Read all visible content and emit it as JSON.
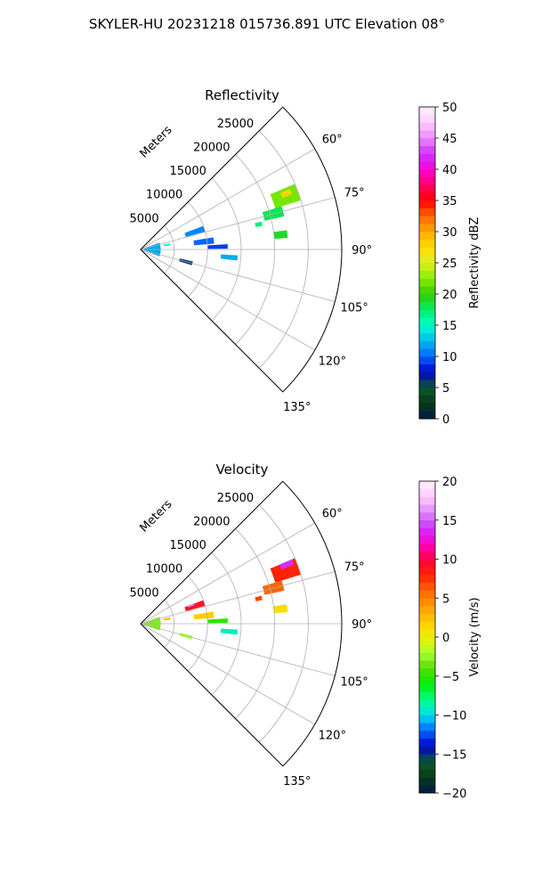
{
  "figure": {
    "title": "SKYLER-HU  20231218  015736.891 UTC Elevation 08°"
  },
  "chart_data": [
    {
      "type": "heatmap",
      "projection": "polar-sector",
      "title": "Reflectivity",
      "radial_axis_label": "Meters",
      "radial_ticks": [
        5000,
        10000,
        15000,
        20000,
        25000
      ],
      "radial_tick_labels": [
        "5000",
        "10000",
        "15000",
        "20000",
        "25000"
      ],
      "radial_max": 30000,
      "angle_range_deg": [
        45,
        135
      ],
      "angle_ticks": [
        60,
        75,
        90,
        105,
        120,
        135
      ],
      "angle_tick_labels": [
        "60°",
        "75°",
        "90°",
        "105°",
        "120°",
        "135°"
      ],
      "grid": true,
      "colorbar": {
        "label": "Reflectivity dBZ",
        "range": [
          0,
          50
        ],
        "ticks": [
          0,
          5,
          10,
          15,
          20,
          25,
          30,
          35,
          40,
          45,
          50
        ],
        "tick_labels": [
          "0",
          "5",
          "10",
          "15",
          "20",
          "25",
          "30",
          "35",
          "40",
          "45",
          "50"
        ],
        "palette": "pyart_NWSRef"
      },
      "echo_regions": [
        {
          "azimuth": 70,
          "range_start": 21000,
          "range_end": 25000,
          "azimuth_width": 6,
          "value": 22
        },
        {
          "azimuth": 69,
          "range_start": 22500,
          "range_end": 24000,
          "azimuth_width": 2,
          "value": 28
        },
        {
          "azimuth": 75,
          "range_start": 19000,
          "range_end": 22000,
          "azimuth_width": 4,
          "value": 18
        },
        {
          "azimuth": 84,
          "range_start": 20000,
          "range_end": 22000,
          "azimuth_width": 3,
          "value": 19
        },
        {
          "azimuth": 78,
          "range_start": 17500,
          "range_end": 18500,
          "azimuth_width": 2,
          "value": 17
        },
        {
          "azimuth": 72,
          "range_start": 7000,
          "range_end": 10000,
          "azimuth_width": 5,
          "value": 11
        },
        {
          "azimuth": 83,
          "range_start": 8000,
          "range_end": 11000,
          "azimuth_width": 5,
          "value": 10
        },
        {
          "azimuth": 88,
          "range_start": 10000,
          "range_end": 13000,
          "azimuth_width": 3,
          "value": 9
        },
        {
          "azimuth": 95,
          "range_start": 12000,
          "range_end": 14500,
          "azimuth_width": 3,
          "value": 12
        },
        {
          "azimuth": 105,
          "range_start": 6000,
          "range_end": 8000,
          "azimuth_width": 4,
          "value": 6
        },
        {
          "azimuth": 80,
          "range_start": 3500,
          "range_end": 4500,
          "azimuth_width": 4,
          "value": 15
        },
        {
          "azimuth": 90,
          "range_start": 500,
          "range_end": 3000,
          "azimuth_width": 40,
          "value": 12
        }
      ]
    },
    {
      "type": "heatmap",
      "projection": "polar-sector",
      "title": "Velocity",
      "radial_axis_label": "Meters",
      "radial_ticks": [
        5000,
        10000,
        15000,
        20000,
        25000
      ],
      "radial_tick_labels": [
        "5000",
        "10000",
        "15000",
        "20000",
        "25000"
      ],
      "radial_max": 30000,
      "angle_range_deg": [
        45,
        135
      ],
      "angle_ticks": [
        60,
        75,
        90,
        105,
        120,
        135
      ],
      "angle_tick_labels": [
        "60°",
        "75°",
        "90°",
        "105°",
        "120°",
        "135°"
      ],
      "grid": true,
      "colorbar": {
        "label": "Velocity (m/s)",
        "range": [
          -20,
          20
        ],
        "ticks": [
          -20,
          -15,
          -10,
          -5,
          0,
          5,
          10,
          15,
          20
        ],
        "tick_labels": [
          "−20",
          "−15",
          "−10",
          "−5",
          "0",
          "5",
          "10",
          "15",
          "20"
        ],
        "palette": "pyart_BuDRd"
      },
      "echo_regions": [
        {
          "azimuth": 70,
          "range_start": 21000,
          "range_end": 25000,
          "azimuth_width": 6,
          "value": 8
        },
        {
          "azimuth": 68,
          "range_start": 22500,
          "range_end": 24500,
          "azimuth_width": 2,
          "value": 14
        },
        {
          "azimuth": 75,
          "range_start": 19000,
          "range_end": 22000,
          "azimuth_width": 4,
          "value": 6
        },
        {
          "azimuth": 84,
          "range_start": 20000,
          "range_end": 22000,
          "azimuth_width": 3,
          "value": 1
        },
        {
          "azimuth": 78,
          "range_start": 17500,
          "range_end": 18500,
          "azimuth_width": 2,
          "value": 7
        },
        {
          "azimuth": 72,
          "range_start": 7000,
          "range_end": 10000,
          "azimuth_width": 5,
          "value": 9
        },
        {
          "azimuth": 70,
          "range_start": 7500,
          "range_end": 8500,
          "azimuth_width": 2,
          "value": 16
        },
        {
          "azimuth": 83,
          "range_start": 8000,
          "range_end": 11000,
          "azimuth_width": 5,
          "value": 2
        },
        {
          "azimuth": 88,
          "range_start": 10000,
          "range_end": 13000,
          "azimuth_width": 3,
          "value": -5
        },
        {
          "azimuth": 95,
          "range_start": 12000,
          "range_end": 14500,
          "azimuth_width": 3,
          "value": -9
        },
        {
          "azimuth": 105,
          "range_start": 6000,
          "range_end": 8000,
          "azimuth_width": 4,
          "value": -2
        },
        {
          "azimuth": 80,
          "range_start": 3500,
          "range_end": 4500,
          "azimuth_width": 4,
          "value": 3
        },
        {
          "azimuth": 90,
          "range_start": 500,
          "range_end": 3000,
          "azimuth_width": 40,
          "value": -3
        }
      ]
    }
  ]
}
